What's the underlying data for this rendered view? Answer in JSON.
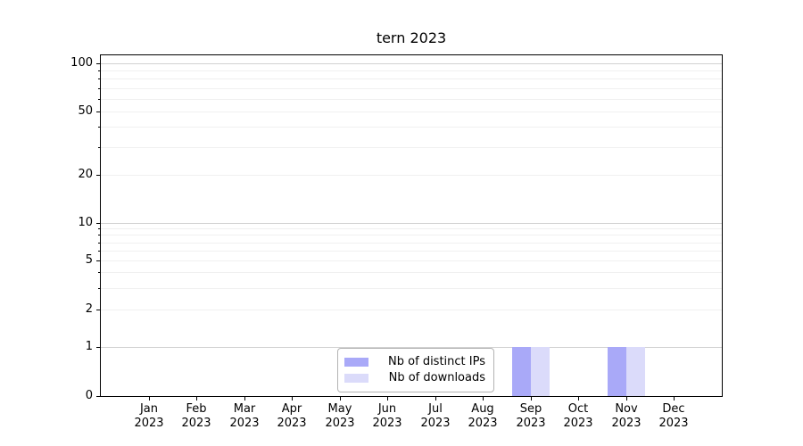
{
  "title": "tern 2023",
  "chart_data": {
    "type": "bar",
    "title": "tern 2023",
    "categories": [
      "Jan 2023",
      "Feb 2023",
      "Mar 2023",
      "Apr 2023",
      "May 2023",
      "Jun 2023",
      "Jul 2023",
      "Aug 2023",
      "Sep 2023",
      "Oct 2023",
      "Nov 2023",
      "Dec 2023"
    ],
    "series": [
      {
        "name": "Nb of distinct IPs",
        "color": "#a9a9f8",
        "values": [
          0,
          0,
          0,
          0,
          0,
          0,
          0,
          0,
          1,
          0,
          1,
          0
        ]
      },
      {
        "name": "Nb of downloads",
        "color": "#dbdbfa",
        "values": [
          0,
          0,
          0,
          0,
          0,
          0,
          0,
          0,
          1,
          0,
          1,
          0
        ]
      }
    ],
    "yaxis": {
      "scale": "symlog",
      "range": [
        0,
        100
      ],
      "ticks": [
        0,
        1,
        2,
        5,
        10,
        20,
        50,
        100
      ],
      "major_gridlines": [
        1,
        10,
        100
      ],
      "minor_gridlines": [
        2,
        3,
        4,
        5,
        6,
        7,
        8,
        9,
        20,
        30,
        40,
        50,
        60,
        70,
        80,
        90
      ],
      "grid": "both"
    },
    "xaxis": {
      "label": "",
      "tick_rotation": 0
    },
    "legend": {
      "position": "lower center-left",
      "entries": [
        "Nb of distinct IPs",
        "Nb of downloads"
      ]
    },
    "colors": {
      "grid_minor": "#f0f0f0",
      "grid_major": "#d2d2d2",
      "spine": "#000000",
      "legend_border": "#b3b3b3",
      "background": "#ffffff"
    }
  }
}
